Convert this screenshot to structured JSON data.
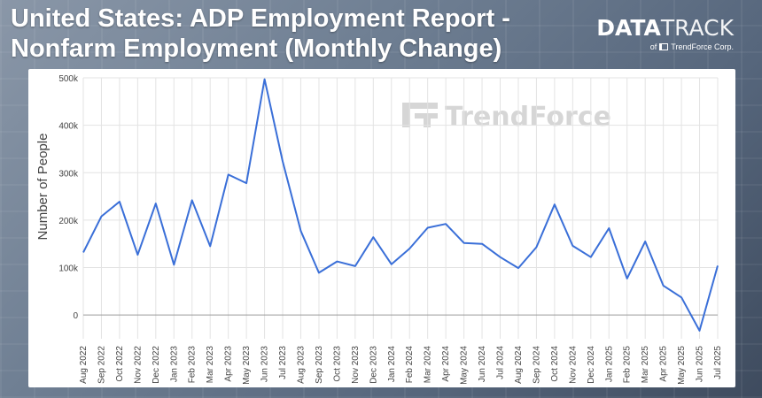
{
  "header": {
    "title": "United States: ADP Employment Report -\nNonfarm Employment (Monthly Change)",
    "logo_strong": "DATA",
    "logo_light": "TRACK",
    "logo_sub_prefix": "of",
    "logo_sub_brand": "TrendForce Corp."
  },
  "watermark": "TrendForce",
  "colors": {
    "line": "#3a6fd8",
    "grid": "#e3e3e3",
    "zero_line": "#9a9a9a"
  },
  "chart_data": {
    "type": "line",
    "ylabel": "Number of People",
    "ylim": [
      -50000,
      500000
    ],
    "yticks": [
      0,
      100000,
      200000,
      300000,
      400000,
      500000
    ],
    "ytick_labels": [
      "0",
      "100k",
      "200k",
      "300k",
      "400k",
      "500k"
    ],
    "grid": true,
    "categories": [
      "Aug 2022",
      "Sep 2022",
      "Oct 2022",
      "Nov 2022",
      "Dec 2022",
      "Jan 2023",
      "Feb 2023",
      "Mar 2023",
      "Apr 2023",
      "May 2023",
      "Jun 2023",
      "Jul 2023",
      "Aug 2023",
      "Sep 2023",
      "Oct 2023",
      "Nov 2023",
      "Dec 2023",
      "Jan 2024",
      "Feb 2024",
      "Mar 2024",
      "Apr 2024",
      "May 2024",
      "Jun 2024",
      "Jul 2024",
      "Aug 2024",
      "Sep 2024",
      "Oct 2024",
      "Nov 2024",
      "Dec 2024",
      "Jan 2025",
      "Feb 2025",
      "Mar 2025",
      "Apr 2025",
      "May 2025",
      "Jun 2025",
      "Jul 2025"
    ],
    "values": [
      132000,
      208000,
      239000,
      127000,
      235000,
      106000,
      242000,
      145000,
      296000,
      278000,
      497000,
      324000,
      177000,
      89000,
      113000,
      103000,
      164000,
      107000,
      140000,
      184000,
      192000,
      152000,
      150000,
      122000,
      99000,
      143000,
      233000,
      146000,
      122000,
      183000,
      77000,
      155000,
      62000,
      37000,
      -33000,
      104000
    ]
  }
}
